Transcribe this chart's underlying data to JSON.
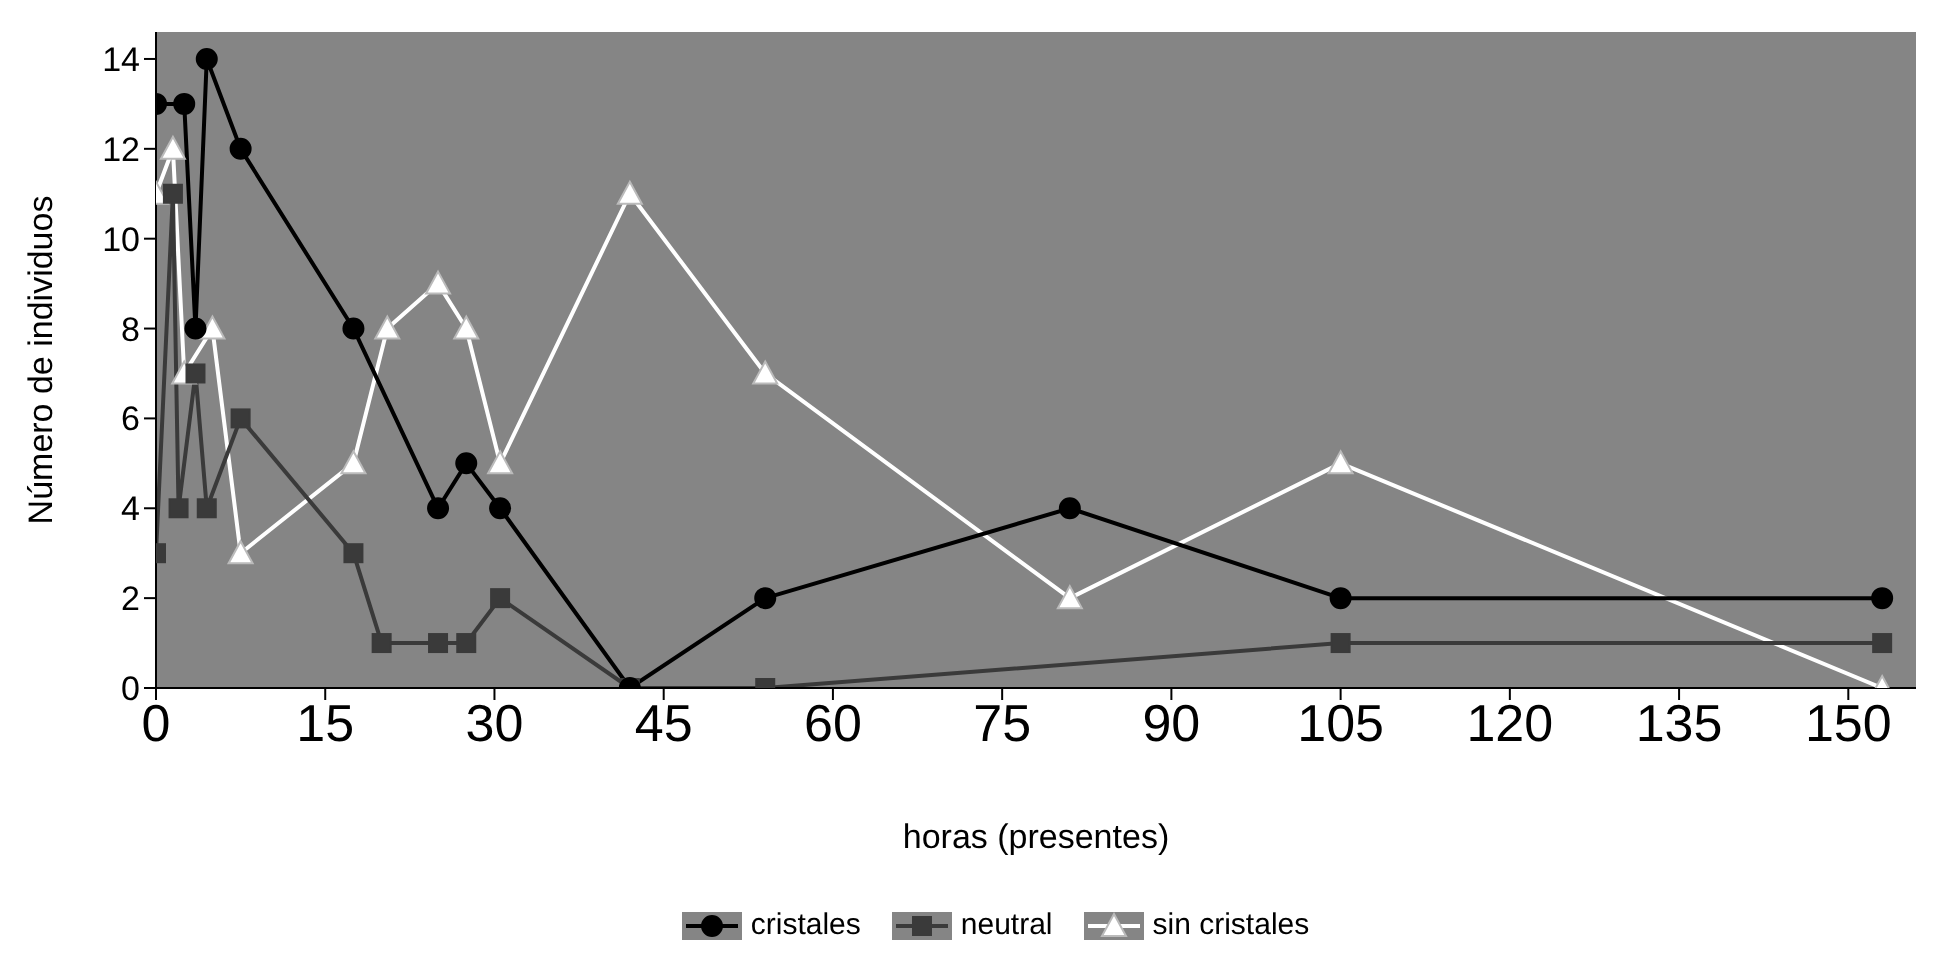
{
  "chart_data": {
    "type": "line",
    "xlabel": "horas (presentes)",
    "ylabel": "Número de individuos",
    "xlim": [
      0,
      156
    ],
    "xticks": [
      0,
      15,
      30,
      45,
      60,
      75,
      90,
      105,
      120,
      135,
      150
    ],
    "ylim": [
      0,
      14.6
    ],
    "yticks": [
      0,
      2,
      4,
      6,
      8,
      10,
      12,
      14
    ],
    "grid": false,
    "legend": "bottom",
    "line_style": "solid",
    "series": [
      {
        "name": "cristales",
        "color": "#000000",
        "marker": "circle",
        "x": [
          0,
          2.5,
          3.5,
          4.5,
          7.5,
          17.5,
          25,
          27.5,
          30.5,
          42,
          54,
          81,
          105,
          153
        ],
        "values": [
          13,
          13,
          8,
          14,
          12,
          8,
          4,
          5,
          4,
          0,
          2,
          4,
          2,
          2
        ]
      },
      {
        "name": "neutral",
        "color": "#3a3a3a",
        "marker": "square",
        "x": [
          0,
          1.5,
          2,
          3.5,
          4.5,
          7.5,
          17.5,
          20,
          25,
          27.5,
          30.5,
          42,
          54,
          105,
          153
        ],
        "values": [
          3,
          11,
          4,
          7,
          4,
          6,
          3,
          1,
          1,
          1,
          2,
          0,
          0,
          1,
          1
        ]
      },
      {
        "name": "sin cristales",
        "color": "#ffffff",
        "marker": "triangle",
        "x": [
          0,
          1.5,
          2.5,
          5,
          7.5,
          17.5,
          20.5,
          25,
          27.5,
          30.5,
          42,
          54,
          81,
          105,
          153
        ],
        "values": [
          11,
          12,
          7,
          8,
          3,
          5,
          8,
          9,
          8,
          5,
          11,
          7,
          2,
          5,
          0
        ]
      }
    ]
  }
}
